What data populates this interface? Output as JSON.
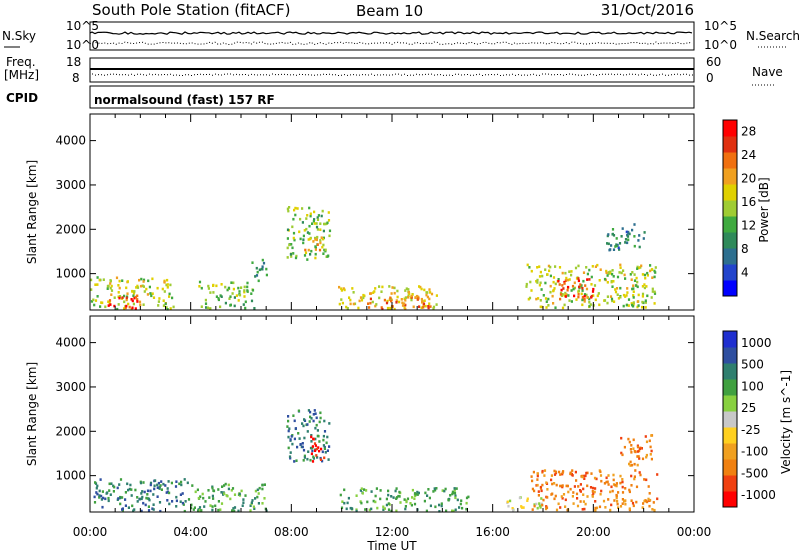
{
  "header": {
    "station": "South Pole Station (fitACF)",
    "beam": "Beam 10",
    "date": "31/Oct/2016"
  },
  "panels": {
    "nsky": {
      "label": "N.Sky",
      "ticks": [
        "10^5",
        "10^0"
      ]
    },
    "nsearch": {
      "label": "N.Search",
      "ticks": [
        "10^5",
        "10^0"
      ]
    },
    "freq": {
      "label_line1": "Freq.",
      "label_line2": "[MHz]",
      "ticks": [
        "18",
        "8"
      ]
    },
    "nave": {
      "label": "Nave",
      "ticks": [
        "60",
        "0"
      ]
    },
    "cpid": {
      "label": "CPID",
      "text": "normalsound (fast) 157 RF"
    }
  },
  "colors": {
    "power": [
      "#0000ff",
      "#2244cc",
      "#2d6f8f",
      "#2f8a5a",
      "#3faa3f",
      "#9fcc33",
      "#e0d000",
      "#f0a020",
      "#f07010",
      "#e03010",
      "#ff0000"
    ],
    "velocity": [
      "#ff0000",
      "#f04010",
      "#f08010",
      "#f0a020",
      "#ffd020",
      "#c8c8c8",
      "#88d040",
      "#40a040",
      "#2f7f6f",
      "#2f4fa0",
      "#1f2fcf"
    ]
  },
  "chart_data": [
    {
      "type": "heatmap",
      "name": "power",
      "ylabel": "Slant Range [km]",
      "yticks": [
        "1000",
        "2000",
        "3000",
        "4000"
      ],
      "ylim": [
        180,
        4600
      ],
      "xticks": [
        "00:00",
        "04:00",
        "08:00",
        "12:00",
        "16:00",
        "20:00",
        "00:00"
      ],
      "xlim_hours": [
        0,
        24
      ],
      "colorbar": {
        "label": "Power [dB]",
        "ticks": [
          "4",
          "8",
          "12",
          "16",
          "20",
          "24",
          "28"
        ],
        "range": [
          0,
          30
        ]
      },
      "clusters": [
        {
          "t": [
            0.0,
            3.3
          ],
          "r": [
            180,
            900
          ],
          "v": 16
        },
        {
          "t": [
            0.6,
            1.9
          ],
          "r": [
            180,
            500
          ],
          "v": 28
        },
        {
          "t": [
            4.3,
            6.5
          ],
          "r": [
            180,
            800
          ],
          "v": 14
        },
        {
          "t": [
            6.4,
            7.0
          ],
          "r": [
            800,
            1300
          ],
          "v": 10
        },
        {
          "t": [
            7.8,
            9.5
          ],
          "r": [
            1300,
            2500
          ],
          "v": 14
        },
        {
          "t": [
            8.5,
            9.2
          ],
          "r": [
            1500,
            1900
          ],
          "v": 22
        },
        {
          "t": [
            9.8,
            13.8
          ],
          "r": [
            180,
            700
          ],
          "v": 18
        },
        {
          "t": [
            11.0,
            13.5
          ],
          "r": [
            180,
            500
          ],
          "v": 24
        },
        {
          "t": [
            17.3,
            22.5
          ],
          "r": [
            200,
            1200
          ],
          "v": 16
        },
        {
          "t": [
            18.5,
            20.0
          ],
          "r": [
            400,
            900
          ],
          "v": 26
        },
        {
          "t": [
            20.5,
            22.0
          ],
          "r": [
            1500,
            2100
          ],
          "v": 8
        }
      ]
    },
    {
      "type": "heatmap",
      "name": "velocity",
      "ylabel": "Slant Range [km]",
      "yticks": [
        "1000",
        "2000",
        "3000",
        "4000"
      ],
      "ylim": [
        180,
        4600
      ],
      "xticks": [
        "00:00",
        "04:00",
        "08:00",
        "12:00",
        "16:00",
        "20:00",
        "00:00"
      ],
      "xlabel": "Time UT",
      "xlim_hours": [
        0,
        24
      ],
      "colorbar": {
        "label": "Velocity [m s^-1]",
        "ticks": [
          "1000",
          "500",
          "100",
          "25",
          "-25",
          "-100",
          "-500",
          "-1000"
        ]
      },
      "clusters": [
        {
          "t": [
            0.0,
            4.0
          ],
          "r": [
            180,
            900
          ],
          "v": 8
        },
        {
          "t": [
            4.0,
            7.0
          ],
          "r": [
            180,
            800
          ],
          "v": 7
        },
        {
          "t": [
            7.8,
            9.5
          ],
          "r": [
            1300,
            2500
          ],
          "v": 8
        },
        {
          "t": [
            8.7,
            9.3
          ],
          "r": [
            1300,
            1900
          ],
          "v": 0
        },
        {
          "t": [
            9.8,
            15.0
          ],
          "r": [
            180,
            700
          ],
          "v": 7
        },
        {
          "t": [
            16.5,
            18.0
          ],
          "r": [
            180,
            500
          ],
          "v": 5
        },
        {
          "t": [
            17.5,
            22.5
          ],
          "r": [
            200,
            1100
          ],
          "v": 2
        },
        {
          "t": [
            21.0,
            22.3
          ],
          "r": [
            1200,
            1900
          ],
          "v": 2
        }
      ]
    }
  ]
}
